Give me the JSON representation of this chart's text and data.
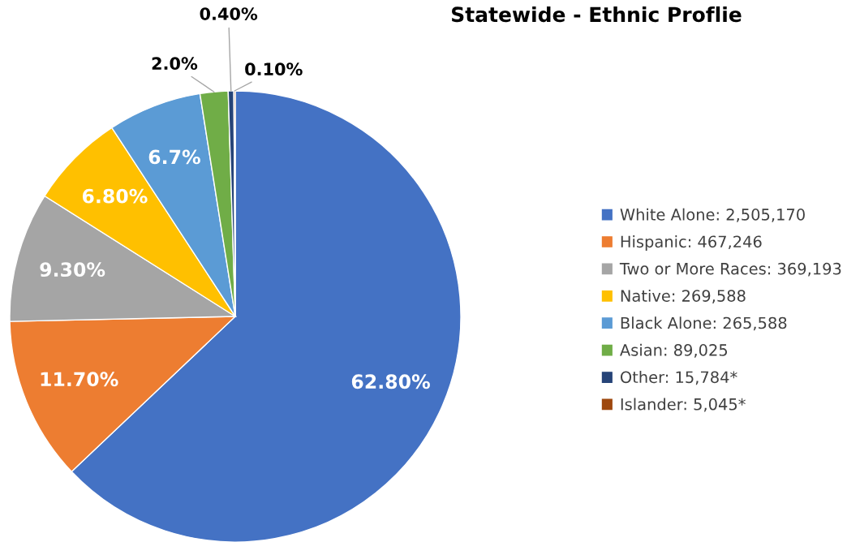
{
  "chart_data": {
    "type": "pie",
    "title": "Statewide - Ethnic Proflie",
    "categories": [
      "White Alone: 2,505,170",
      "Hispanic: 467,246",
      "Two or More Races: 369,193",
      "Native: 269,588",
      "Black Alone: 265,588",
      "Asian: 89,025",
      "Other: 15,784*",
      "Islander: 5,045*"
    ],
    "values": [
      62.8,
      11.7,
      9.3,
      6.8,
      6.7,
      2.0,
      0.4,
      0.1
    ],
    "value_labels": [
      "62.80%",
      "11.70%",
      "9.30%",
      "6.80%",
      "6.7%",
      "2.0%",
      "0.40%",
      "0.10%"
    ],
    "colors": [
      "#4472c4",
      "#ed7d31",
      "#a5a5a5",
      "#ffc000",
      "#5b9bd5",
      "#70ad47",
      "#264478",
      "#9e480e"
    ],
    "legend": "right"
  }
}
